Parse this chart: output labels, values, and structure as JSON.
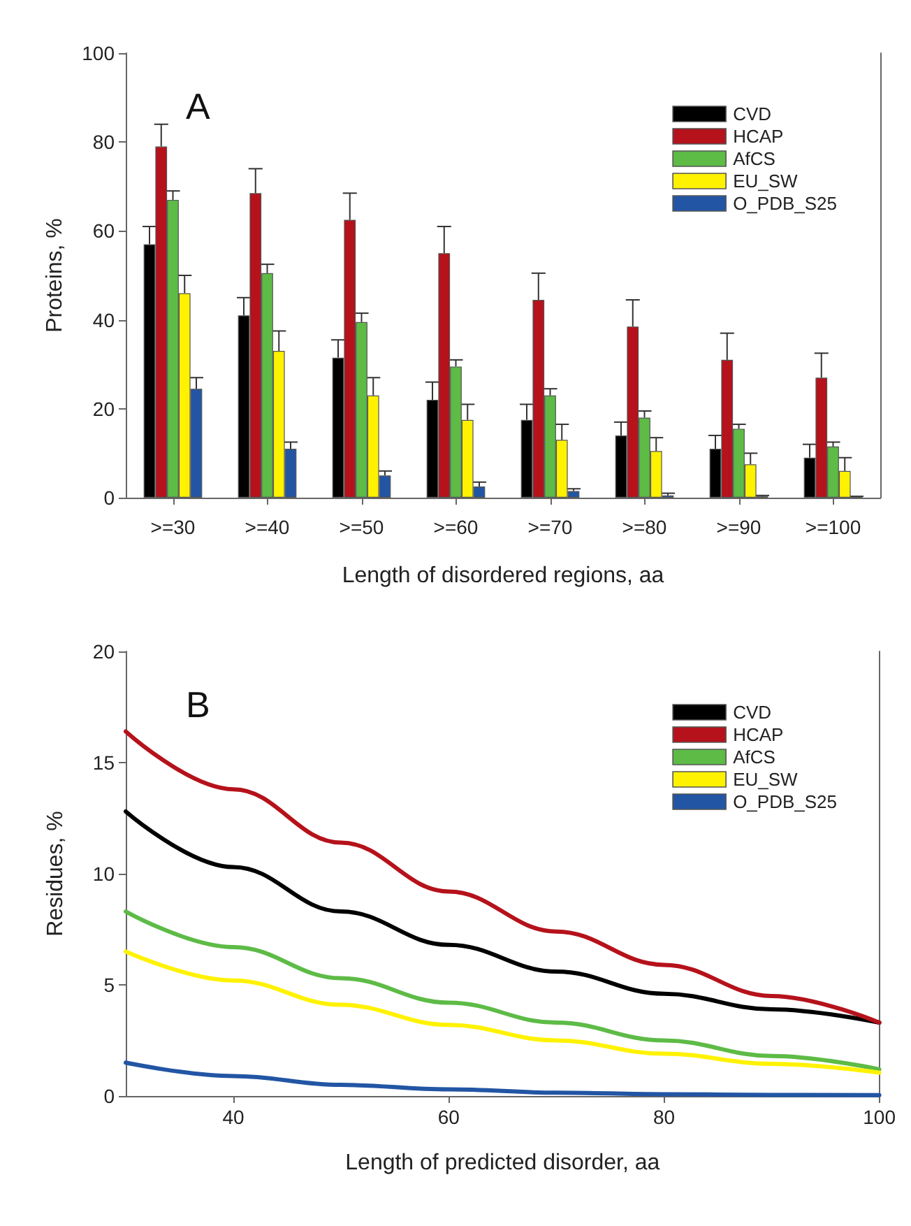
{
  "chart_data": [
    {
      "type": "bar",
      "title": "A",
      "xlabel": "Length of disordered regions, aa",
      "ylabel": "Proteins, %",
      "categories": [
        ">=30",
        ">=40",
        ">=50",
        ">=60",
        ">=70",
        ">=80",
        ">=90",
        ">=100"
      ],
      "ylim": [
        0,
        100
      ],
      "yticks": [
        0,
        20,
        40,
        60,
        80,
        100
      ],
      "grid": false,
      "legend": "top right",
      "series": [
        {
          "name": "CVD",
          "color": "#000000",
          "values": [
            57,
            41,
            31.5,
            22,
            17.5,
            14,
            11,
            9
          ],
          "errors": [
            [
              57,
              61
            ],
            [
              41,
              45
            ],
            [
              31.5,
              35.5
            ],
            [
              22,
              26
            ],
            [
              17.5,
              21
            ],
            [
              14,
              17
            ],
            [
              11,
              14
            ],
            [
              9,
              12
            ]
          ]
        },
        {
          "name": "HCAP",
          "color": "#b5121b",
          "values": [
            79,
            68.5,
            62.5,
            55,
            44.5,
            38.5,
            31,
            27
          ],
          "errors": [
            [
              79,
              84
            ],
            [
              68.5,
              74
            ],
            [
              62.5,
              68.5
            ],
            [
              55,
              61
            ],
            [
              44.5,
              50.5
            ],
            [
              38.5,
              44.5
            ],
            [
              31,
              37
            ],
            [
              27,
              32.5
            ]
          ]
        },
        {
          "name": "AfCS",
          "color": "#5dbb46",
          "values": [
            67,
            50.5,
            39.5,
            29.5,
            23,
            18,
            15.5,
            11.5
          ],
          "errors": [
            [
              67,
              69
            ],
            [
              50.5,
              52.5
            ],
            [
              39.5,
              41.5
            ],
            [
              29.5,
              31
            ],
            [
              23,
              24.5
            ],
            [
              18,
              19.5
            ],
            [
              15.5,
              16.5
            ],
            [
              11.5,
              12.5
            ]
          ]
        },
        {
          "name": "EU_SW",
          "color": "#fff200",
          "values": [
            46,
            33,
            23,
            17.5,
            13,
            10.5,
            7.5,
            6
          ],
          "errors": [
            [
              46,
              50
            ],
            [
              33,
              37.5
            ],
            [
              23,
              27
            ],
            [
              17.5,
              21
            ],
            [
              13,
              16.5
            ],
            [
              10.5,
              13.5
            ],
            [
              7.5,
              10
            ],
            [
              6,
              9
            ]
          ]
        },
        {
          "name": "O_PDB_S25",
          "color": "#2255a4",
          "values": [
            24.5,
            11,
            5,
            2.5,
            1.5,
            0.5,
            0.3,
            0.2
          ],
          "errors": [
            [
              24.5,
              27
            ],
            [
              11,
              12.5
            ],
            [
              5,
              6
            ],
            [
              2.5,
              3.5
            ],
            [
              1.5,
              2
            ],
            [
              0.5,
              1
            ],
            [
              0.3,
              0.5
            ],
            [
              0.2,
              0.3
            ]
          ]
        }
      ]
    },
    {
      "type": "line",
      "title": "B",
      "xlabel": "Length of predicted disorder, aa",
      "ylabel": "Residues, %",
      "x": [
        30,
        40,
        50,
        60,
        70,
        80,
        90,
        100
      ],
      "xlim": [
        30,
        100
      ],
      "xticks": [
        40,
        60,
        80,
        100
      ],
      "ylim": [
        0,
        20
      ],
      "yticks": [
        0,
        5,
        10,
        15,
        20
      ],
      "grid": false,
      "legend": "top right",
      "marker": "none",
      "line_style": "solid",
      "series": [
        {
          "name": "CVD",
          "color": "#000000",
          "values": [
            12.8,
            10.3,
            8.3,
            6.8,
            5.6,
            4.6,
            3.9,
            3.3
          ]
        },
        {
          "name": "HCAP",
          "color": "#b5121b",
          "values": [
            16.4,
            13.8,
            11.4,
            9.2,
            7.4,
            5.9,
            4.5,
            3.3
          ]
        },
        {
          "name": "AfCS",
          "color": "#5dbb46",
          "values": [
            8.3,
            6.7,
            5.3,
            4.2,
            3.3,
            2.5,
            1.8,
            1.2
          ]
        },
        {
          "name": "EU_SW",
          "color": "#fff200",
          "values": [
            6.5,
            5.2,
            4.1,
            3.2,
            2.5,
            1.9,
            1.45,
            1.05
          ]
        },
        {
          "name": "O_PDB_S25",
          "color": "#2255a4",
          "values": [
            1.5,
            0.9,
            0.5,
            0.3,
            0.15,
            0.08,
            0.05,
            0.04
          ]
        }
      ]
    }
  ]
}
